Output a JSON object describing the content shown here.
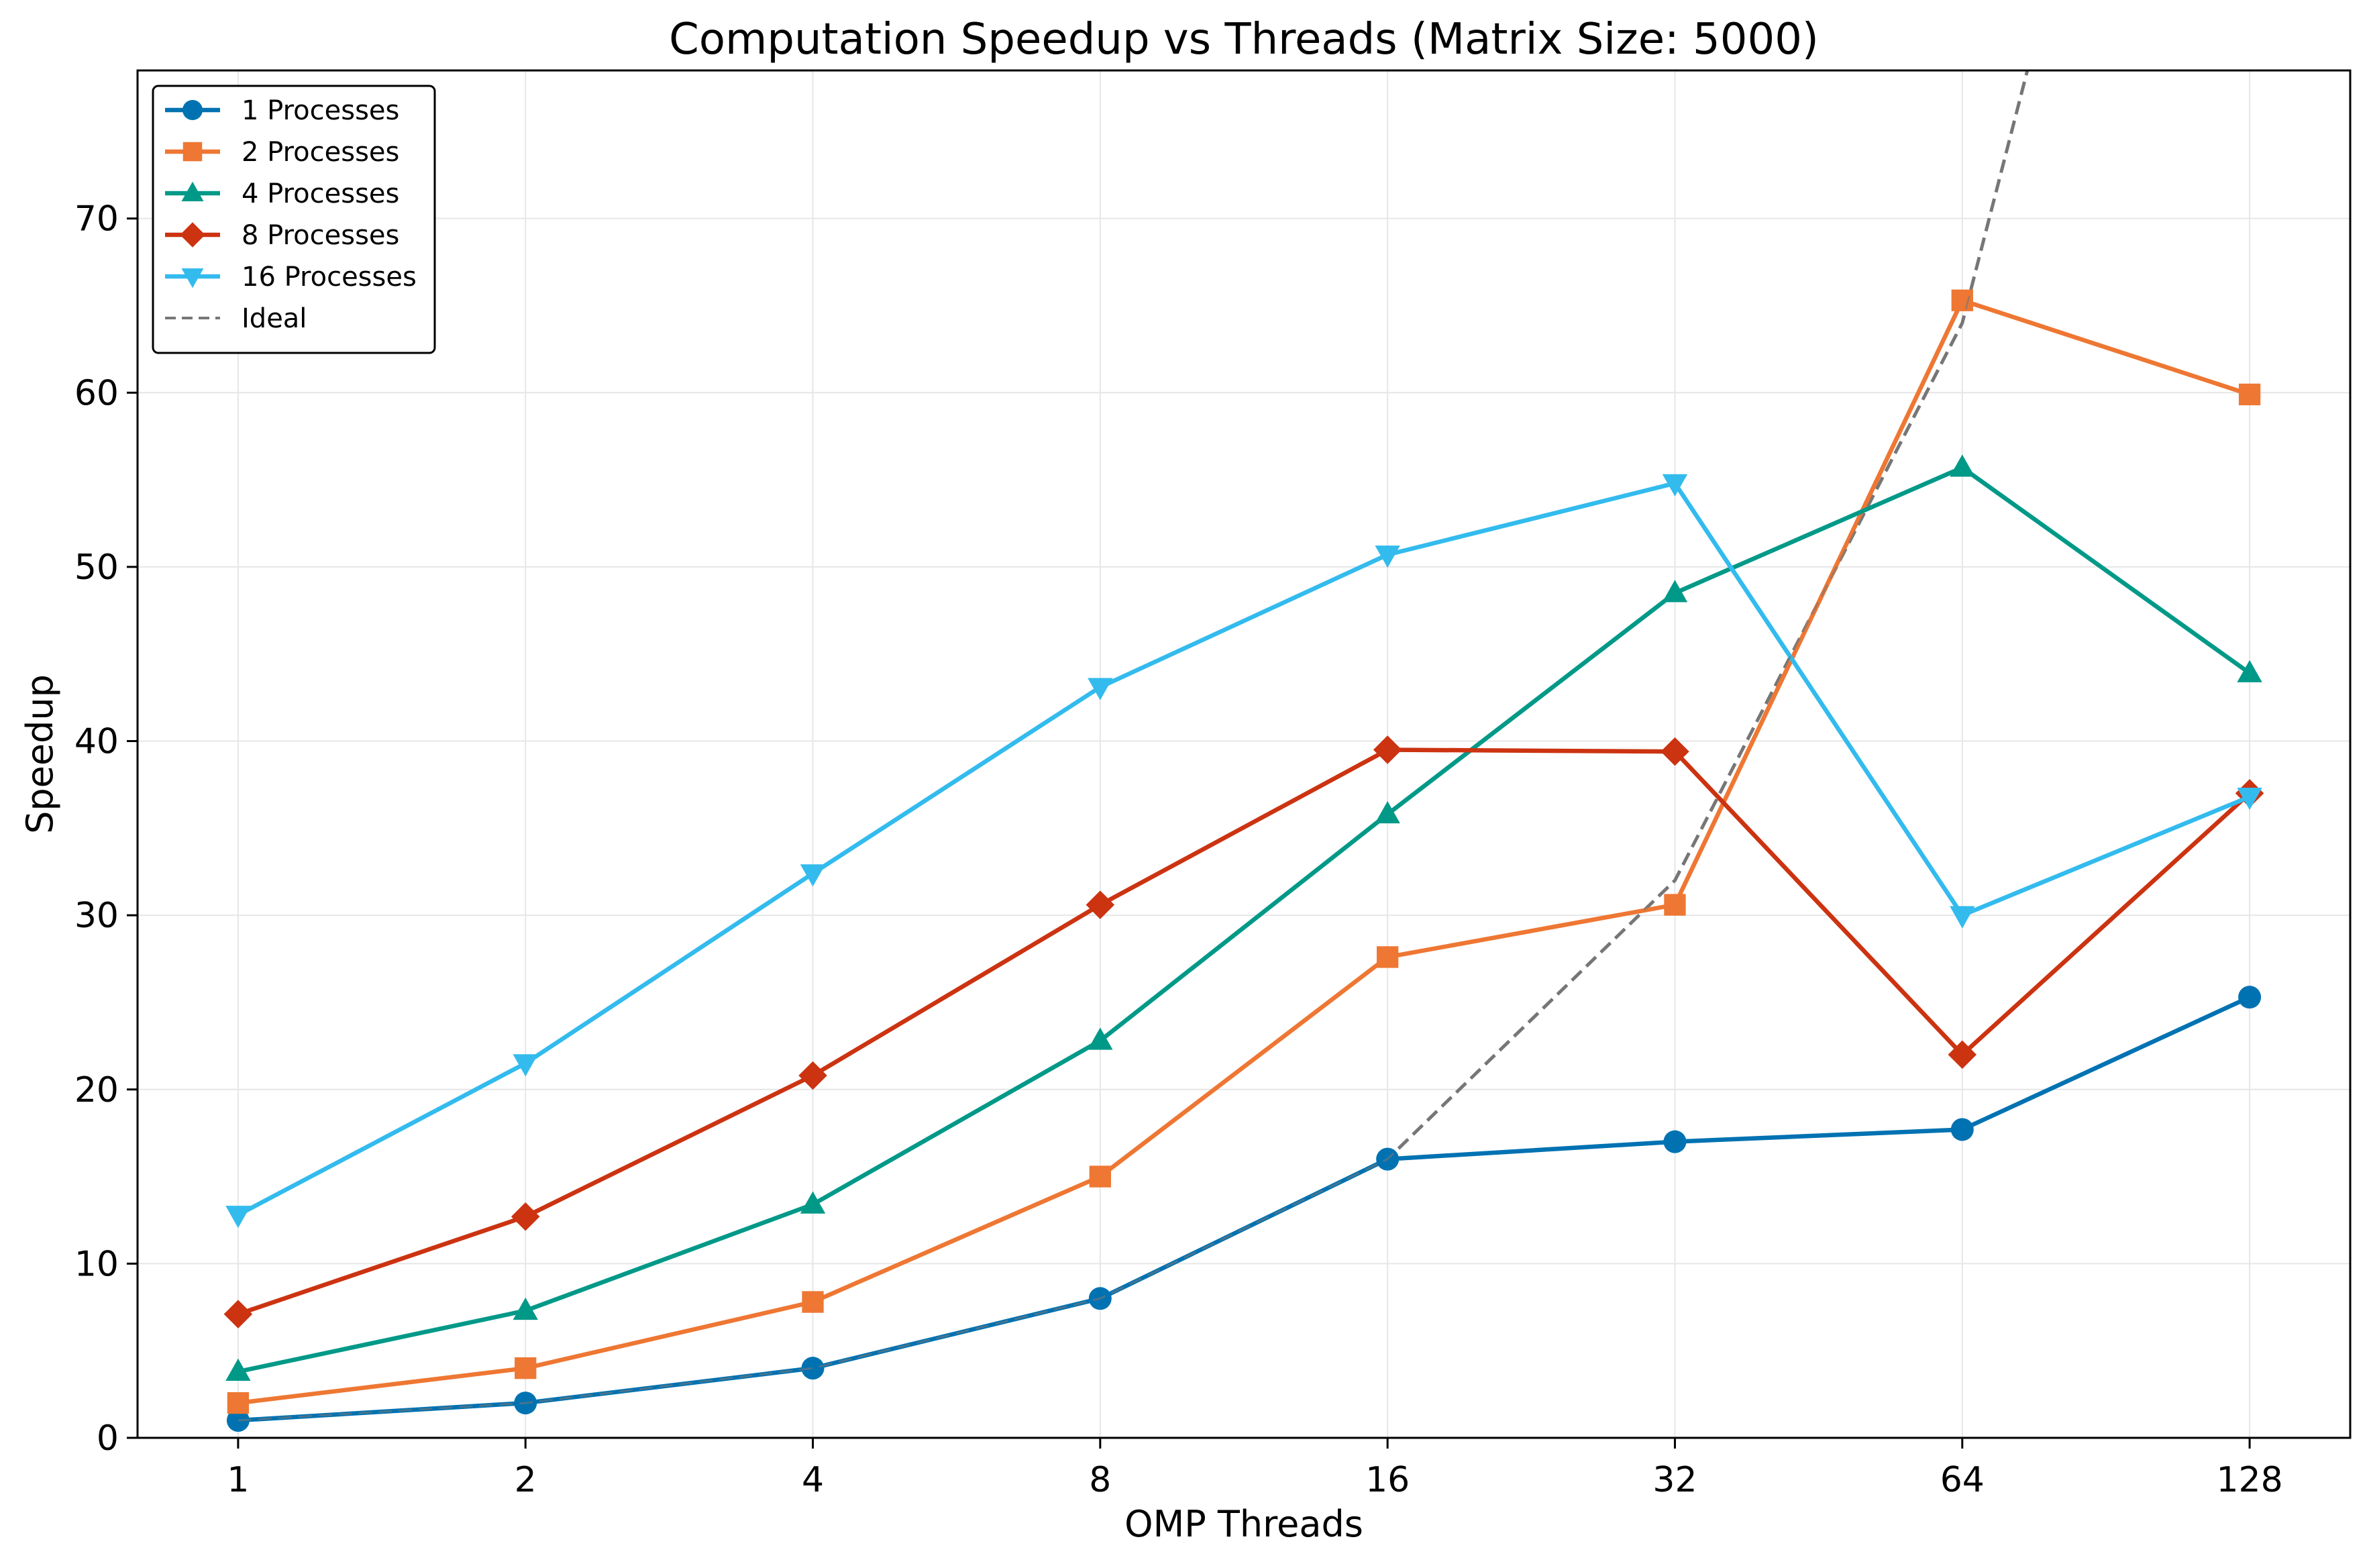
{
  "chart_data": {
    "type": "line",
    "title": "Computation Speedup vs Threads (Matrix Size: 5000)",
    "xlabel": "OMP Threads",
    "ylabel": "Speedup",
    "x_scale": "log2",
    "x": [
      1,
      2,
      4,
      8,
      16,
      32,
      64,
      128
    ],
    "xticks": [
      "1",
      "2",
      "4",
      "8",
      "16",
      "32",
      "64",
      "128"
    ],
    "yticks": [
      "0",
      "10",
      "20",
      "30",
      "40",
      "50",
      "60",
      "70"
    ],
    "ylim": [
      0,
      78.5
    ],
    "grid": true,
    "legend_position": "top-left",
    "series": [
      {
        "name": "1 Processes",
        "color": "#0072B2",
        "marker": "circle",
        "values": [
          1.0,
          2.0,
          4.0,
          8.0,
          16.0,
          17.0,
          17.7,
          25.3
        ]
      },
      {
        "name": "2 Processes",
        "color": "#EE7733",
        "marker": "square",
        "values": [
          2.0,
          4.0,
          7.8,
          15.0,
          27.6,
          30.6,
          65.3,
          59.9
        ]
      },
      {
        "name": "4 Processes",
        "color": "#009988",
        "marker": "triangle-up",
        "values": [
          3.8,
          7.3,
          13.4,
          22.8,
          35.8,
          48.5,
          55.7,
          43.9
        ]
      },
      {
        "name": "8 Processes",
        "color": "#CC3311",
        "marker": "diamond",
        "values": [
          7.1,
          12.7,
          20.8,
          30.6,
          39.5,
          39.4,
          22.0,
          37.0
        ]
      },
      {
        "name": "16 Processes",
        "color": "#33BBEE",
        "marker": "triangle-down",
        "values": [
          12.8,
          21.5,
          32.4,
          43.1,
          50.7,
          54.8,
          30.0,
          36.8
        ]
      }
    ],
    "ideal": {
      "name": "Ideal",
      "color": "#777777",
      "style": "dashed",
      "x": [
        1,
        2,
        4,
        8,
        16,
        32,
        64,
        128
      ],
      "values": [
        1,
        2,
        4,
        8,
        16,
        32,
        64,
        128
      ]
    }
  }
}
